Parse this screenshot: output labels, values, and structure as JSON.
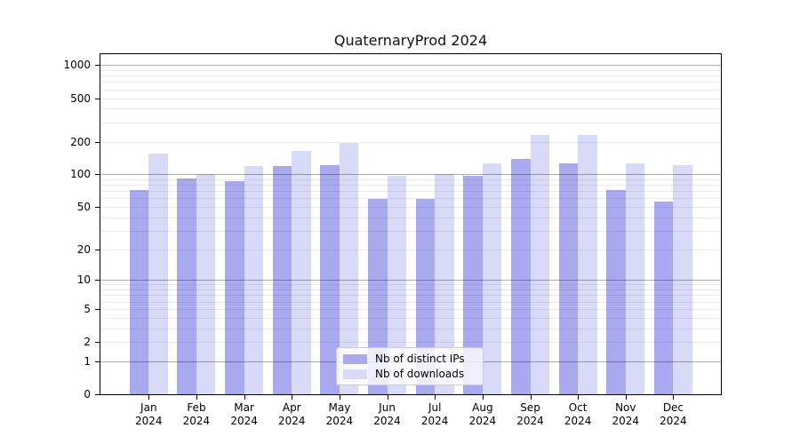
{
  "title": "QuaternaryProd 2024",
  "colors": {
    "distinct_ips": "#a9a9f0",
    "downloads": "#d9d9f8",
    "axis": "#000000",
    "grid_major": "rgba(0,0,0,0.32)",
    "grid_minor": "rgba(0,0,0,0.08)",
    "legend_border": "#cccccc"
  },
  "legend": {
    "items": [
      {
        "key": "distinct-ips",
        "label": "Nb of distinct IPs",
        "color": "#a9a9f0"
      },
      {
        "key": "downloads",
        "label": "Nb of downloads",
        "color": "#d9d9f8"
      }
    ]
  },
  "y_axis": {
    "ticks": [
      0,
      1,
      2,
      5,
      10,
      20,
      50,
      100,
      200,
      500,
      1000
    ],
    "major_gridlines": [
      1,
      10,
      100,
      1000
    ],
    "minor_gridline_decades": [
      1,
      10,
      100
    ],
    "scale": "log10(1+v)",
    "top_value": 1260
  },
  "x_axis": {
    "categories": [
      {
        "month": "Jan",
        "year": "2024"
      },
      {
        "month": "Feb",
        "year": "2024"
      },
      {
        "month": "Mar",
        "year": "2024"
      },
      {
        "month": "Apr",
        "year": "2024"
      },
      {
        "month": "May",
        "year": "2024"
      },
      {
        "month": "Jun",
        "year": "2024"
      },
      {
        "month": "Jul",
        "year": "2024"
      },
      {
        "month": "Aug",
        "year": "2024"
      },
      {
        "month": "Sep",
        "year": "2024"
      },
      {
        "month": "Oct",
        "year": "2024"
      },
      {
        "month": "Nov",
        "year": "2024"
      },
      {
        "month": "Dec",
        "year": "2024"
      }
    ]
  },
  "chart_data": {
    "type": "bar",
    "title": "QuaternaryProd 2024",
    "xlabel": "",
    "ylabel": "",
    "y_scale": "pseudo-log (log10(1+v))",
    "y_ticks": [
      0,
      1,
      2,
      5,
      10,
      20,
      50,
      100,
      200,
      500,
      1000
    ],
    "ylim": [
      0,
      1260
    ],
    "grid": true,
    "legend_position": "inside-bottom-center",
    "categories": [
      "Jan 2024",
      "Feb 2024",
      "Mar 2024",
      "Apr 2024",
      "May 2024",
      "Jun 2024",
      "Jul 2024",
      "Aug 2024",
      "Sep 2024",
      "Oct 2024",
      "Nov 2024",
      "Dec 2024"
    ],
    "series": [
      {
        "name": "Nb of distinct IPs",
        "key": "distinct-ips",
        "color": "#a9a9f0",
        "values": [
          72,
          92,
          87,
          120,
          122,
          59,
          59,
          97,
          140,
          127,
          72,
          56
        ]
      },
      {
        "name": "Nb of downloads",
        "key": "downloads",
        "color": "#d9d9f8",
        "values": [
          155,
          100,
          120,
          165,
          193,
          97,
          100,
          127,
          232,
          232,
          127,
          121
        ]
      }
    ]
  }
}
